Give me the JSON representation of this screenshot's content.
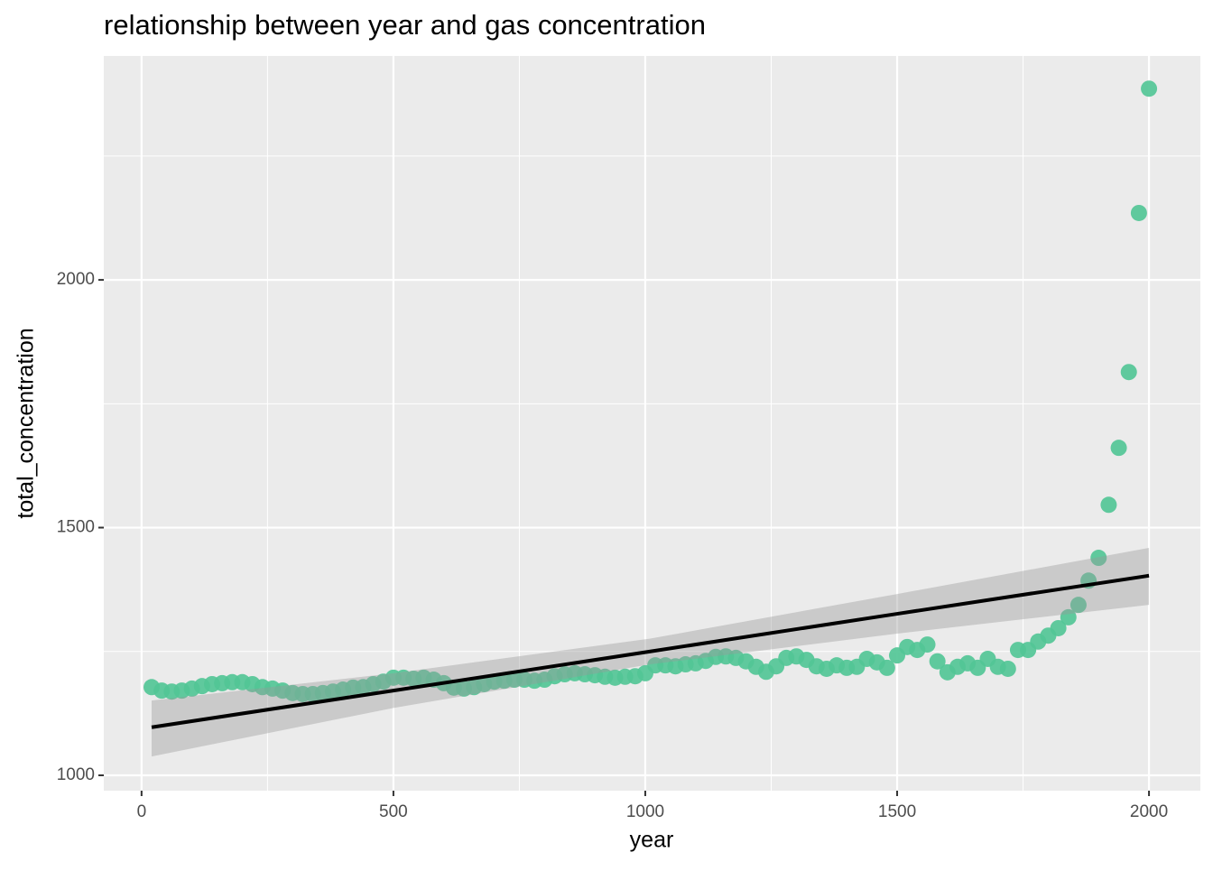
{
  "chart_data": {
    "type": "scatter",
    "title": "relationship between year and gas concentration",
    "x_label": "year",
    "y_label": "total_concentration",
    "x": [
      20,
      40,
      60,
      80,
      100,
      120,
      140,
      160,
      180,
      200,
      220,
      240,
      260,
      280,
      300,
      320,
      340,
      360,
      380,
      400,
      420,
      440,
      460,
      480,
      500,
      520,
      540,
      560,
      580,
      600,
      620,
      640,
      660,
      680,
      700,
      720,
      740,
      760,
      780,
      800,
      820,
      840,
      860,
      880,
      900,
      920,
      940,
      960,
      980,
      1000,
      1020,
      1040,
      1060,
      1080,
      1100,
      1120,
      1140,
      1160,
      1180,
      1200,
      1220,
      1240,
      1260,
      1280,
      1300,
      1320,
      1340,
      1360,
      1380,
      1400,
      1420,
      1440,
      1460,
      1480,
      1500,
      1520,
      1540,
      1560,
      1580,
      1600,
      1620,
      1640,
      1660,
      1680,
      1700,
      1720,
      1740,
      1760,
      1780,
      1800,
      1820,
      1840,
      1860,
      1880,
      1900,
      1920,
      1940,
      1960,
      1980,
      2000
    ],
    "values": [
      1178,
      1171,
      1169,
      1171,
      1175,
      1180,
      1184,
      1186,
      1188,
      1188,
      1184,
      1178,
      1175,
      1171,
      1166,
      1164,
      1164,
      1166,
      1169,
      1173,
      1177,
      1178,
      1184,
      1189,
      1197,
      1197,
      1195,
      1197,
      1193,
      1186,
      1177,
      1175,
      1178,
      1184,
      1189,
      1191,
      1193,
      1193,
      1191,
      1193,
      1200,
      1204,
      1206,
      1204,
      1202,
      1199,
      1197,
      1199,
      1200,
      1206,
      1222,
      1222,
      1220,
      1224,
      1226,
      1231,
      1239,
      1240,
      1237,
      1230,
      1219,
      1209,
      1220,
      1237,
      1240,
      1233,
      1220,
      1215,
      1222,
      1217,
      1219,
      1235,
      1228,
      1217,
      1242,
      1259,
      1253,
      1264,
      1230,
      1208,
      1219,
      1226,
      1217,
      1235,
      1219,
      1215,
      1253,
      1253,
      1270,
      1282,
      1297,
      1319,
      1344,
      1393,
      1439,
      1546,
      1661,
      1814,
      2135,
      2386
    ],
    "color": "#52c596",
    "fit": {
      "x": [
        20,
        500,
        1010,
        1500,
        2000
      ],
      "values": [
        1097,
        1171,
        1250,
        1326,
        1403
      ],
      "lower": [
        1038,
        1136,
        1224,
        1286,
        1344
      ],
      "upper": [
        1151,
        1206,
        1276,
        1366,
        1459
      ],
      "color": "#000000"
    },
    "xlim": [
      -75,
      2102
    ],
    "ylim": [
      969,
      2452
    ],
    "xticks": [
      0,
      500,
      1000,
      1500,
      2000
    ],
    "yticks": [
      1000,
      1500,
      2000
    ],
    "x_minor_ticks": [
      250,
      750,
      1250,
      1750
    ],
    "y_minor_ticks": [
      1250,
      1750,
      2250
    ],
    "grid": true
  }
}
